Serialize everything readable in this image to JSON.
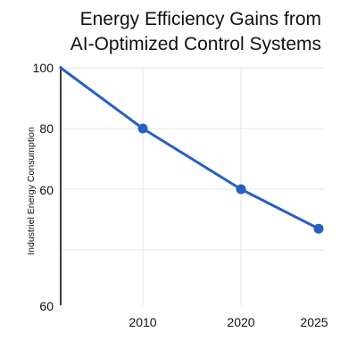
{
  "chart_data": {
    "type": "line",
    "title": "Energy Efficiency Gains from AI-Optimized Control Systems",
    "title_lines": [
      "Energy Efficiency Gains from",
      "AI-Optimized Control Systems"
    ],
    "xlabel": "",
    "ylabel": "Industriel Energy Consumption",
    "x_ticks": [
      "2010",
      "2020",
      "2025"
    ],
    "y_ticks": [
      "100",
      "80",
      "60",
      "60"
    ],
    "grid": true,
    "colors": {
      "line": "#2760c4",
      "grid": "#e6e6e6",
      "axis": "#111111"
    },
    "series": [
      {
        "x": [
          "2000",
          "2010",
          "2020",
          "2025"
        ],
        "values": [
          100,
          80,
          60,
          47
        ]
      }
    ]
  }
}
